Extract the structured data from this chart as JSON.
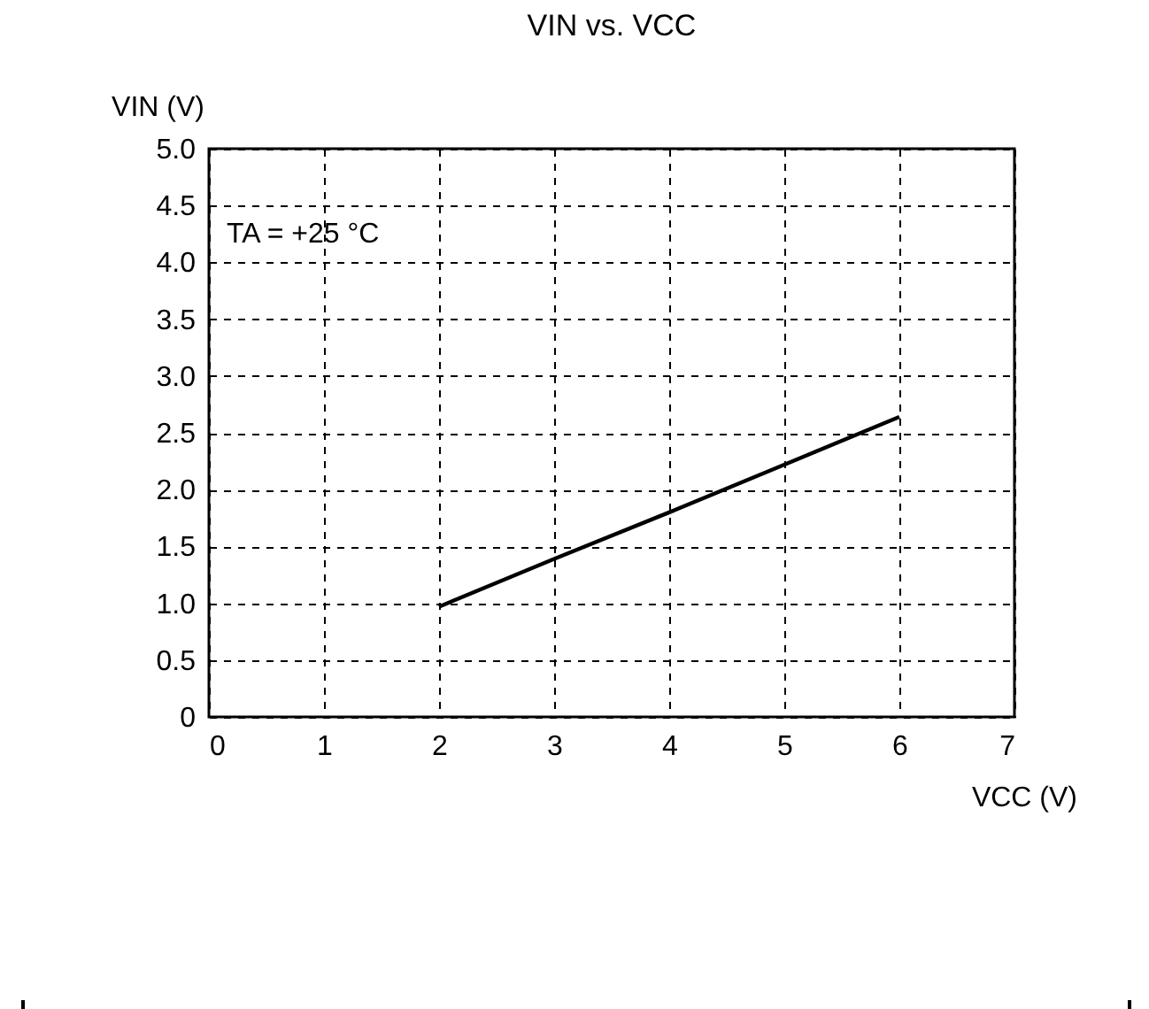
{
  "chart_data": {
    "type": "line",
    "title": "VIN vs. VCC",
    "xlabel": "VCC (V)",
    "ylabel": "VIN (V)",
    "annotations": [
      "TA = +25 °C"
    ],
    "x": [
      2,
      3,
      4,
      5,
      6
    ],
    "series": [
      {
        "color": "#000000",
        "values": [
          0.97,
          1.39,
          1.8,
          2.22,
          2.64
        ]
      }
    ],
    "xlim": [
      0,
      7
    ],
    "xticks": [
      0,
      1,
      2,
      3,
      4,
      5,
      6,
      7
    ],
    "ylim": [
      0,
      5
    ],
    "yticks": [
      0,
      0.5,
      {
        "value": 1,
        "label": "1.0"
      },
      1.5,
      {
        "value": 2,
        "label": "2.0"
      },
      2.5,
      {
        "value": 3,
        "label": "3.0"
      },
      3.5,
      {
        "value": 4,
        "label": "4.0"
      },
      4.5,
      {
        "value": 5,
        "label": "5.0"
      }
    ],
    "grid": true,
    "line_style": "solid",
    "marker": "none"
  }
}
